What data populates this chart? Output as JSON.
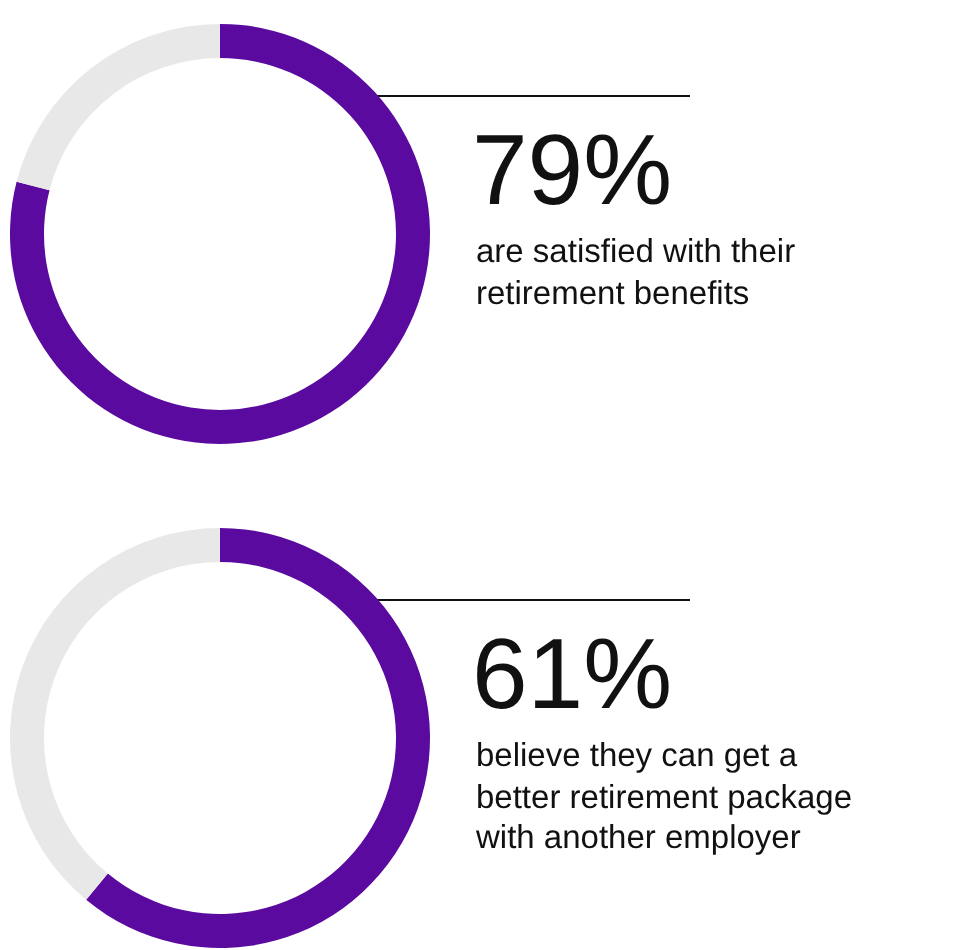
{
  "chart_data": [
    {
      "type": "donut",
      "categories": [
        "are satisfied with their retirement benefits",
        null
      ],
      "values": [
        79,
        21
      ],
      "value_labels": [
        "79%",
        null
      ],
      "colors": [
        "#5a0a9e",
        "#e8e8e8"
      ]
    },
    {
      "type": "donut",
      "categories": [
        "believe they can get a better retirement package with another employer",
        null
      ],
      "values": [
        61,
        39
      ],
      "value_labels": [
        "61%",
        null
      ],
      "colors": [
        "#5a0a9e",
        "#e8e8e8"
      ]
    }
  ]
}
